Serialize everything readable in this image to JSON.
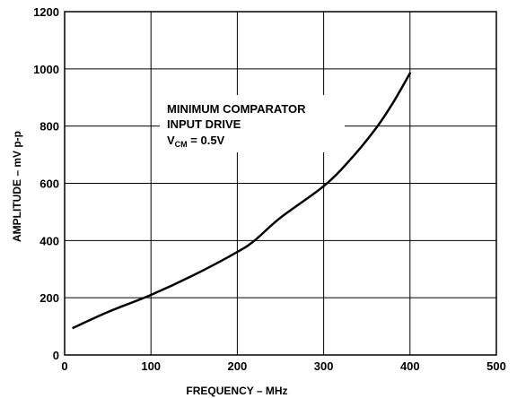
{
  "chart_data": {
    "type": "line",
    "xlabel": "FREQUENCY – MHz",
    "ylabel": "AMPLITUDE – mV p-p",
    "xlim": [
      0,
      500
    ],
    "ylim": [
      0,
      1200
    ],
    "xticks": [
      0,
      100,
      200,
      300,
      400,
      500
    ],
    "yticks": [
      0,
      200,
      400,
      600,
      800,
      1000,
      1200
    ],
    "grid": true,
    "annotation": {
      "line1": "MINIMUM COMPARATOR",
      "line2": "INPUT DRIVE",
      "v_prefix": "V",
      "v_sub": "CM",
      "v_suffix": " = 0.5V"
    },
    "series": [
      {
        "x": [
          10,
          50,
          100,
          150,
          200,
          220,
          250,
          300,
          330,
          360,
          380,
          400
        ],
        "values": [
          95,
          150,
          210,
          280,
          360,
          400,
          480,
          590,
          680,
          790,
          880,
          985
        ]
      }
    ]
  }
}
